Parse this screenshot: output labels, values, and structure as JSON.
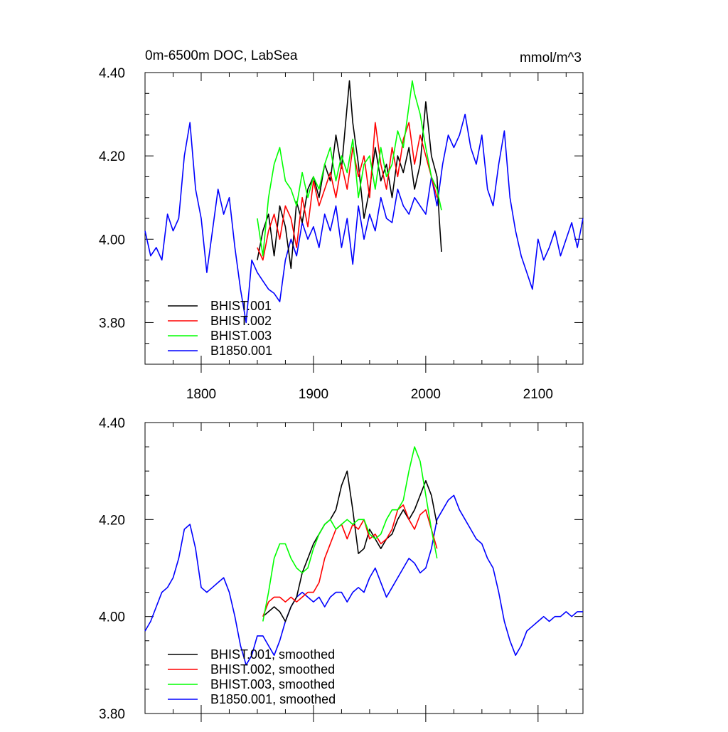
{
  "chart_data": [
    {
      "type": "line",
      "title": "0m-6500m DOC, LabSea",
      "units": "mmol/m^3",
      "xlim": [
        1750,
        2140
      ],
      "ylim": [
        3.7,
        4.4
      ],
      "xticks": [
        1800,
        1900,
        2000,
        2100
      ],
      "xtick_labels": [
        "1800",
        "1900",
        "2000",
        "2100"
      ],
      "yticks": [
        3.8,
        4.0,
        4.2,
        4.4
      ],
      "ytick_labels": [
        "3.80",
        "4.00",
        "4.20",
        "4.40"
      ],
      "legend_position": "bottom-left",
      "series": [
        {
          "name": "BHIST.001",
          "color": "#000000",
          "x": [
            1850,
            1855,
            1860,
            1865,
            1870,
            1875,
            1880,
            1885,
            1890,
            1895,
            1900,
            1905,
            1910,
            1915,
            1920,
            1925,
            1930,
            1932,
            1935,
            1940,
            1945,
            1950,
            1955,
            1960,
            1965,
            1970,
            1975,
            1980,
            1985,
            1990,
            1995,
            2000,
            2005,
            2010,
            2012,
            2014
          ],
          "y": [
            3.95,
            4.02,
            4.06,
            3.96,
            4.08,
            4.03,
            3.93,
            4.09,
            4.04,
            4.12,
            4.15,
            4.1,
            4.18,
            4.14,
            4.25,
            4.17,
            4.32,
            4.38,
            4.28,
            4.18,
            4.05,
            4.12,
            4.22,
            4.14,
            4.18,
            4.1,
            4.2,
            4.16,
            4.22,
            4.12,
            4.18,
            4.33,
            4.2,
            4.15,
            4.05,
            3.97
          ]
        },
        {
          "name": "BHIST.002",
          "color": "#ff0000",
          "x": [
            1850,
            1855,
            1860,
            1865,
            1870,
            1875,
            1880,
            1885,
            1890,
            1895,
            1900,
            1905,
            1910,
            1915,
            1920,
            1925,
            1930,
            1935,
            1940,
            1945,
            1950,
            1955,
            1960,
            1965,
            1970,
            1975,
            1980,
            1985,
            1990,
            1995,
            2000,
            2005,
            2010
          ],
          "y": [
            3.98,
            3.95,
            4.02,
            4.06,
            4.0,
            4.08,
            4.05,
            3.98,
            4.1,
            4.03,
            4.14,
            4.08,
            4.12,
            4.16,
            4.1,
            4.18,
            4.12,
            4.22,
            4.15,
            4.2,
            4.1,
            4.28,
            4.18,
            4.12,
            4.22,
            4.15,
            4.24,
            4.28,
            4.18,
            4.25,
            4.2,
            4.15,
            4.1
          ]
        },
        {
          "name": "BHIST.003",
          "color": "#00ff00",
          "x": [
            1850,
            1855,
            1860,
            1865,
            1870,
            1875,
            1880,
            1885,
            1890,
            1895,
            1900,
            1905,
            1910,
            1915,
            1920,
            1925,
            1930,
            1935,
            1940,
            1945,
            1950,
            1955,
            1960,
            1965,
            1970,
            1975,
            1980,
            1985,
            1988,
            1990,
            1995,
            2000,
            2005,
            2010,
            2014
          ],
          "y": [
            4.05,
            3.96,
            4.1,
            4.18,
            4.22,
            4.14,
            4.12,
            4.08,
            4.16,
            4.1,
            4.15,
            4.12,
            4.18,
            4.22,
            4.14,
            4.2,
            4.16,
            4.24,
            4.1,
            4.18,
            4.2,
            4.12,
            4.22,
            4.15,
            4.18,
            4.26,
            4.22,
            4.32,
            4.38,
            4.35,
            4.3,
            4.22,
            4.15,
            4.12,
            4.07
          ]
        },
        {
          "name": "B1850.001",
          "color": "#0000ff",
          "x": [
            1750,
            1755,
            1760,
            1765,
            1770,
            1775,
            1780,
            1785,
            1790,
            1795,
            1800,
            1805,
            1810,
            1815,
            1820,
            1825,
            1830,
            1835,
            1840,
            1845,
            1850,
            1855,
            1860,
            1865,
            1870,
            1875,
            1880,
            1885,
            1890,
            1895,
            1900,
            1905,
            1910,
            1915,
            1920,
            1925,
            1930,
            1935,
            1940,
            1945,
            1950,
            1955,
            1960,
            1965,
            1970,
            1975,
            1980,
            1985,
            1990,
            1995,
            2000,
            2005,
            2010,
            2015,
            2020,
            2025,
            2030,
            2035,
            2040,
            2045,
            2050,
            2055,
            2060,
            2065,
            2070,
            2075,
            2080,
            2085,
            2090,
            2095,
            2100,
            2105,
            2110,
            2115,
            2120,
            2125,
            2130,
            2135,
            2140
          ],
          "y": [
            4.02,
            3.96,
            3.98,
            3.95,
            4.06,
            4.02,
            4.05,
            4.2,
            4.28,
            4.12,
            4.05,
            3.92,
            4.02,
            4.12,
            4.06,
            4.1,
            3.98,
            3.88,
            3.8,
            3.95,
            3.92,
            3.9,
            3.88,
            3.87,
            3.85,
            3.95,
            4.0,
            3.96,
            4.04,
            4.0,
            4.03,
            3.98,
            4.06,
            4.02,
            4.08,
            3.98,
            4.05,
            3.94,
            4.08,
            4.0,
            4.06,
            4.02,
            4.1,
            4.05,
            4.04,
            4.12,
            4.08,
            4.06,
            4.1,
            4.08,
            4.06,
            4.15,
            4.08,
            4.18,
            4.25,
            4.22,
            4.25,
            4.3,
            4.22,
            4.18,
            4.25,
            4.12,
            4.08,
            4.18,
            4.26,
            4.1,
            4.02,
            3.96,
            3.92,
            3.88,
            4.0,
            3.95,
            3.98,
            4.02,
            3.96,
            4.0,
            4.04,
            3.98,
            4.05
          ]
        }
      ]
    },
    {
      "type": "line",
      "title": "",
      "xlim": [
        1750,
        2140
      ],
      "ylim": [
        3.8,
        4.4
      ],
      "xticks": [
        1800,
        1900,
        2000,
        2100
      ],
      "yticks": [
        3.8,
        4.0,
        4.2,
        4.4
      ],
      "ytick_labels": [
        "3.80",
        "4.00",
        "4.20",
        "4.40"
      ],
      "legend_position": "bottom-left",
      "series": [
        {
          "name": "BHIST.001, smoothed",
          "color": "#000000",
          "x": [
            1855,
            1860,
            1865,
            1870,
            1875,
            1880,
            1885,
            1890,
            1895,
            1900,
            1905,
            1910,
            1915,
            1920,
            1925,
            1930,
            1935,
            1940,
            1945,
            1950,
            1955,
            1960,
            1965,
            1970,
            1975,
            1980,
            1985,
            1990,
            1995,
            2000,
            2005,
            2010
          ],
          "y": [
            4.0,
            4.01,
            4.02,
            4.01,
            3.99,
            4.02,
            4.04,
            4.09,
            4.12,
            4.15,
            4.17,
            4.19,
            4.2,
            4.22,
            4.27,
            4.3,
            4.22,
            4.13,
            4.14,
            4.18,
            4.16,
            4.14,
            4.16,
            4.17,
            4.2,
            4.22,
            4.2,
            4.22,
            4.25,
            4.28,
            4.25,
            4.19
          ]
        },
        {
          "name": "BHIST.002, smoothed",
          "color": "#ff0000",
          "x": [
            1855,
            1860,
            1865,
            1870,
            1875,
            1880,
            1885,
            1890,
            1895,
            1900,
            1905,
            1910,
            1915,
            1920,
            1925,
            1930,
            1935,
            1940,
            1945,
            1950,
            1955,
            1960,
            1965,
            1970,
            1975,
            1980,
            1985,
            1990,
            1995,
            2000,
            2005,
            2010
          ],
          "y": [
            4.0,
            4.03,
            4.04,
            4.04,
            4.03,
            4.04,
            4.03,
            4.04,
            4.05,
            4.05,
            4.07,
            4.12,
            4.15,
            4.18,
            4.19,
            4.16,
            4.19,
            4.18,
            4.2,
            4.16,
            4.17,
            4.15,
            4.16,
            4.18,
            4.22,
            4.23,
            4.2,
            4.18,
            4.21,
            4.22,
            4.18,
            4.14
          ]
        },
        {
          "name": "BHIST.003, smoothed",
          "color": "#00ff00",
          "x": [
            1855,
            1860,
            1865,
            1870,
            1875,
            1880,
            1885,
            1890,
            1895,
            1900,
            1905,
            1910,
            1915,
            1920,
            1925,
            1930,
            1935,
            1940,
            1945,
            1950,
            1955,
            1960,
            1965,
            1970,
            1975,
            1980,
            1985,
            1990,
            1995,
            2000,
            2005,
            2010
          ],
          "y": [
            3.99,
            4.05,
            4.12,
            4.15,
            4.15,
            4.12,
            4.1,
            4.09,
            4.1,
            4.14,
            4.17,
            4.19,
            4.2,
            4.18,
            4.19,
            4.2,
            4.19,
            4.2,
            4.2,
            4.17,
            4.16,
            4.17,
            4.2,
            4.22,
            4.22,
            4.24,
            4.3,
            4.35,
            4.32,
            4.25,
            4.18,
            4.12
          ]
        },
        {
          "name": "B1850.001, smoothed",
          "color": "#0000ff",
          "x": [
            1750,
            1755,
            1760,
            1765,
            1770,
            1775,
            1780,
            1785,
            1790,
            1795,
            1800,
            1805,
            1810,
            1815,
            1820,
            1825,
            1830,
            1835,
            1840,
            1845,
            1850,
            1855,
            1860,
            1865,
            1870,
            1875,
            1880,
            1885,
            1890,
            1895,
            1900,
            1905,
            1910,
            1915,
            1920,
            1925,
            1930,
            1935,
            1940,
            1945,
            1950,
            1955,
            1960,
            1965,
            1970,
            1975,
            1980,
            1985,
            1990,
            1995,
            2000,
            2005,
            2010,
            2015,
            2020,
            2025,
            2030,
            2035,
            2040,
            2045,
            2050,
            2055,
            2060,
            2065,
            2070,
            2075,
            2080,
            2085,
            2090,
            2095,
            2100,
            2105,
            2110,
            2115,
            2120,
            2125,
            2130,
            2135,
            2140
          ],
          "y": [
            3.97,
            3.99,
            4.02,
            4.05,
            4.06,
            4.08,
            4.12,
            4.18,
            4.19,
            4.14,
            4.06,
            4.05,
            4.06,
            4.07,
            4.08,
            4.05,
            4.0,
            3.94,
            3.9,
            3.92,
            3.96,
            3.96,
            3.94,
            3.92,
            3.95,
            3.99,
            4.02,
            4.04,
            4.05,
            4.04,
            4.03,
            4.04,
            4.02,
            4.04,
            4.05,
            4.05,
            4.03,
            4.05,
            4.06,
            4.05,
            4.08,
            4.1,
            4.07,
            4.04,
            4.06,
            4.08,
            4.1,
            4.12,
            4.11,
            4.09,
            4.1,
            4.14,
            4.2,
            4.22,
            4.24,
            4.25,
            4.22,
            4.2,
            4.18,
            4.16,
            4.15,
            4.12,
            4.1,
            4.05,
            3.99,
            3.95,
            3.92,
            3.94,
            3.97,
            3.98,
            3.99,
            4.0,
            3.99,
            4.0,
            4.0,
            4.01,
            4.0,
            4.01,
            4.01
          ]
        }
      ]
    }
  ]
}
